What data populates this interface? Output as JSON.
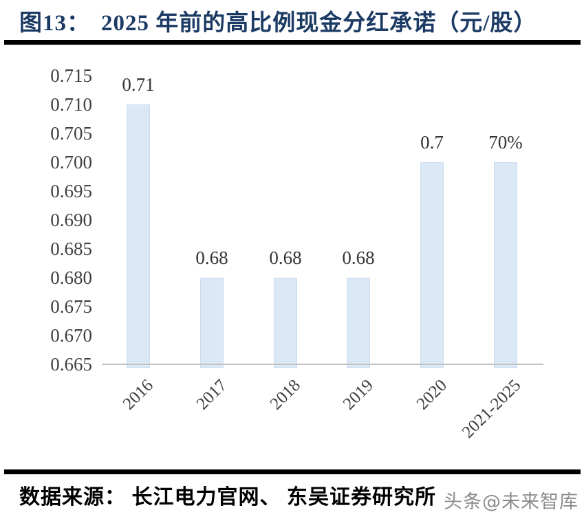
{
  "header": {
    "figure_label": "图13：",
    "title": "2025 年前的高比例现金分红承诺（元/股）"
  },
  "chart_data": {
    "type": "bar",
    "title": "图13：2025 年前的高比例现金分红承诺（元/股）",
    "categories": [
      "2016",
      "2017",
      "2018",
      "2019",
      "2020",
      "2021-2025"
    ],
    "values": [
      0.71,
      0.68,
      0.68,
      0.68,
      0.7,
      0.7
    ],
    "data_labels": [
      "0.71",
      "0.68",
      "0.68",
      "0.68",
      "0.7",
      "70%"
    ],
    "yticks": [
      "0.715",
      "0.710",
      "0.705",
      "0.700",
      "0.695",
      "0.690",
      "0.685",
      "0.680",
      "0.675",
      "0.670",
      "0.665"
    ],
    "ylim": [
      0.665,
      0.715
    ],
    "xlabel": "",
    "ylabel": "",
    "grid": false,
    "legend_position": "none",
    "bar_color": "#dbe9f6"
  },
  "footer": {
    "source": "数据来源： 长江电力官网、 东吴证券研究所",
    "watermark": "头条@未来智库"
  },
  "colors": {
    "title": "#1b3a64",
    "bar": "#dbe9f6",
    "axis_line": "#c3c3c3",
    "tick_text": "#3f3f3f",
    "label_text": "#333333",
    "divider": "#000000",
    "watermark": "#8c8c8c"
  }
}
